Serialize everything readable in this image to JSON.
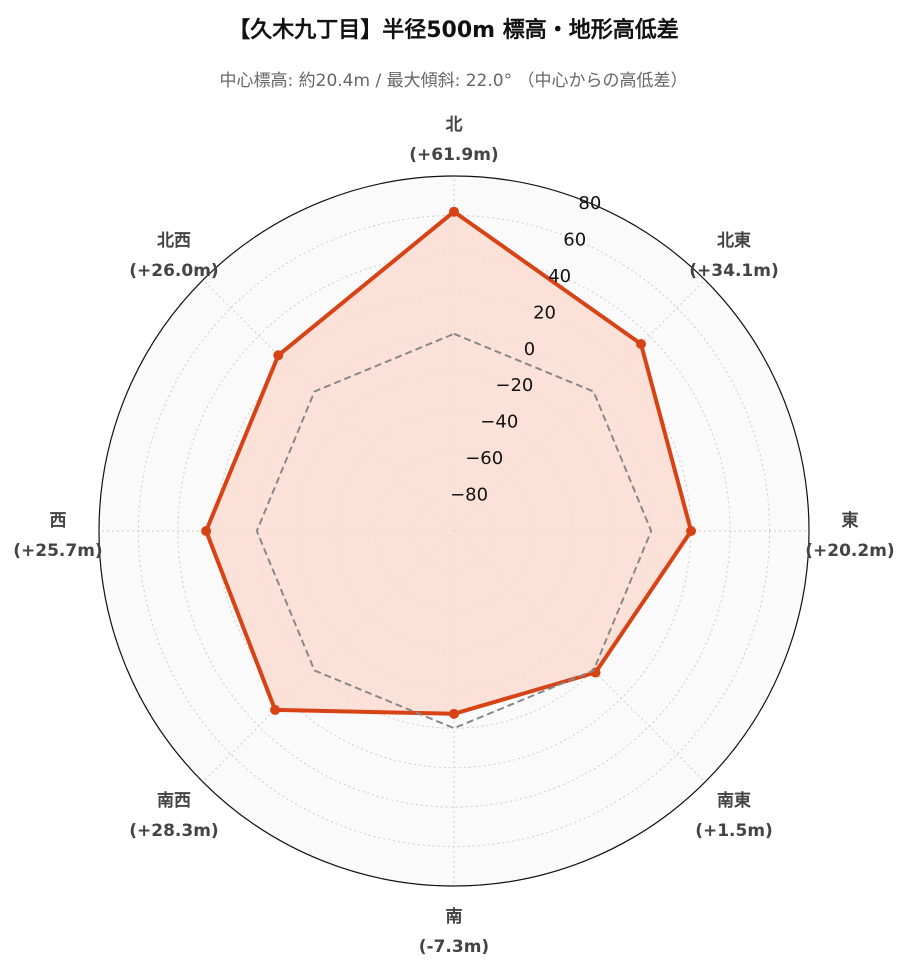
{
  "chart_data": {
    "type": "radar",
    "title": "【久木九丁目】半径500m 標高・地形高低差",
    "subtitle": "中心標高: 約20.4m / 最大傾斜: 22.0° （中心からの高低差）",
    "rlim": [
      -100,
      80
    ],
    "rticks": [
      -80,
      -60,
      -40,
      -20,
      0,
      20,
      40,
      60,
      80
    ],
    "rtick_labels": [
      "−80",
      "−60",
      "−40",
      "−20",
      "0",
      "20",
      "40",
      "60",
      "80"
    ],
    "grid": true,
    "directions": [
      "北",
      "北東",
      "東",
      "南東",
      "南",
      "南西",
      "西",
      "北西"
    ],
    "direction_values": [
      "(+61.9m)",
      "(+34.1m)",
      "(+20.2m)",
      "(+1.5m)",
      "(-7.3m)",
      "(+28.3m)",
      "(+25.7m)",
      "(+26.0m)"
    ],
    "series": [
      {
        "values": [
          61.9,
          34.1,
          20.2,
          1.5,
          -7.3,
          28.3,
          25.7,
          26.0
        ],
        "color": "#d84315",
        "fill": "#fcdcd2",
        "style": "solid"
      },
      {
        "values": [
          0,
          0,
          0,
          0,
          0,
          0,
          0,
          0
        ],
        "color": "#888888",
        "style": "dashed"
      }
    ],
    "background": "#fafafa"
  }
}
